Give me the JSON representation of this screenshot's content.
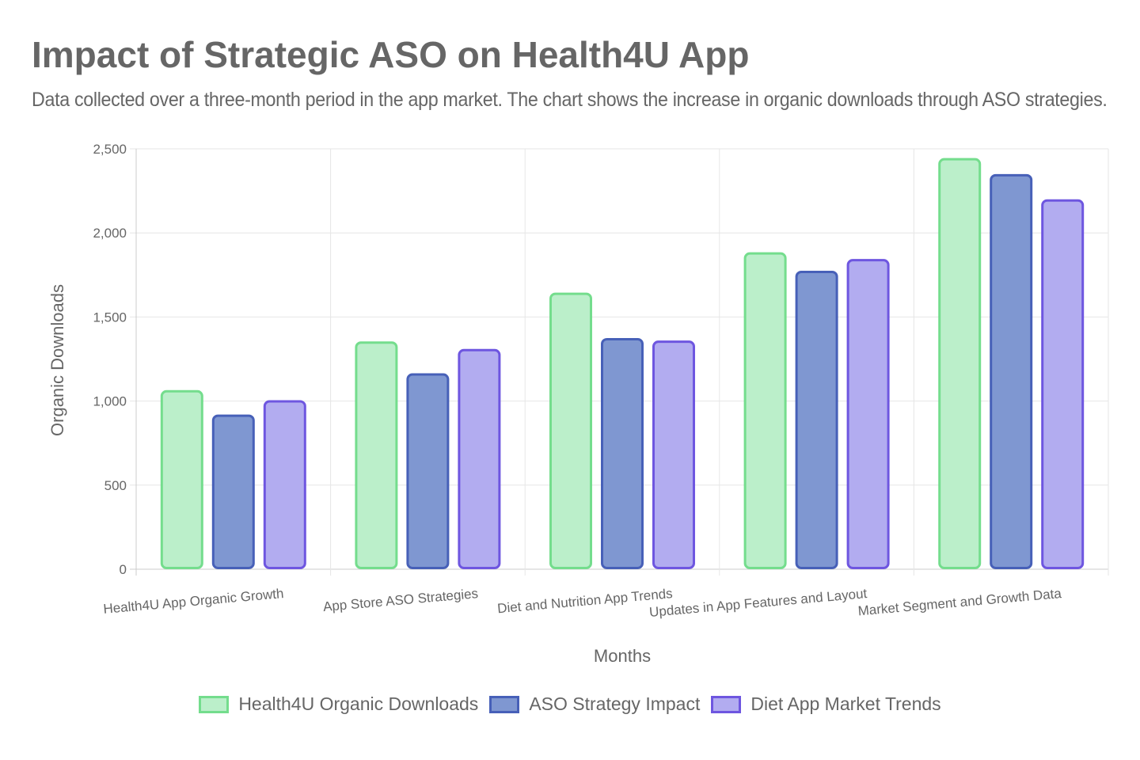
{
  "title": "Impact of Strategic ASO on Health4U App",
  "subtitle": "Data collected over a three-month period in the app market. The chart shows the increase in organic downloads through ASO strategies.",
  "chart_data": {
    "type": "bar",
    "title": "Impact of Strategic ASO on Health4U App",
    "xlabel": "Months",
    "ylabel": "Organic Downloads",
    "ylim": [
      0,
      2500
    ],
    "yticks": [
      0,
      500,
      1000,
      1500,
      2000,
      2500
    ],
    "ytick_labels": [
      "0",
      "500",
      "1,000",
      "1,500",
      "2,000",
      "2,500"
    ],
    "grid": true,
    "legend_position": "bottom",
    "categories": [
      "Health4U App Organic Growth",
      "App Store ASO Strategies",
      "Diet and Nutrition App Trends",
      "Updates in App Features and Layout",
      "Market Segment and Growth Data"
    ],
    "series": [
      {
        "name": "Health4U Organic Downloads",
        "values": [
          1065,
          1355,
          1645,
          1885,
          2445
        ],
        "fill": "#bbefca",
        "stroke": "#74dd8d"
      },
      {
        "name": "ASO Strategy Impact",
        "values": [
          920,
          1165,
          1375,
          1775,
          2350
        ],
        "fill": "#7f97d1",
        "stroke": "#4760b8"
      },
      {
        "name": "Diet App Market Trends",
        "values": [
          1005,
          1310,
          1360,
          1845,
          2200
        ],
        "fill": "#b2acf0",
        "stroke": "#6e56e0"
      }
    ]
  }
}
